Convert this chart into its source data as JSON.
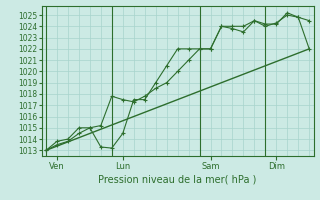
{
  "bg_color": "#cceae4",
  "grid_color": "#a8d4cc",
  "line_color": "#2d6e2d",
  "xlabel": "Pression niveau de la mer( hPa )",
  "ylim": [
    1012.5,
    1025.8
  ],
  "yticks": [
    1013,
    1014,
    1015,
    1016,
    1017,
    1018,
    1019,
    1020,
    1021,
    1022,
    1023,
    1024,
    1025
  ],
  "day_labels": [
    "Ven",
    "Lun",
    "Sam",
    "Dim"
  ],
  "day_positions": [
    0.5,
    3.5,
    7.5,
    10.5
  ],
  "vline_positions": [
    0.0,
    3.0,
    7.0,
    10.0
  ],
  "xmin": -0.2,
  "xmax": 12.2,
  "series1_x": [
    0.0,
    0.5,
    1.0,
    1.5,
    2.0,
    2.5,
    3.0,
    3.5,
    4.0,
    4.5,
    5.0,
    5.5,
    6.0,
    6.5,
    7.0,
    7.5,
    8.0,
    8.5,
    9.0,
    9.5,
    10.0,
    10.5,
    11.0,
    11.5,
    12.0
  ],
  "series1_y": [
    1013.0,
    1013.5,
    1013.8,
    1014.5,
    1015.0,
    1015.2,
    1017.8,
    1017.5,
    1017.3,
    1017.8,
    1018.5,
    1019.0,
    1020.0,
    1021.0,
    1022.0,
    1022.0,
    1024.0,
    1024.0,
    1024.0,
    1024.5,
    1024.2,
    1024.2,
    1025.2,
    1024.8,
    1024.5
  ],
  "series2_x": [
    0.0,
    0.5,
    1.0,
    1.5,
    2.0,
    2.5,
    3.0,
    3.5,
    4.0,
    4.5,
    5.0,
    5.5,
    6.0,
    6.5,
    7.0,
    7.5,
    8.0,
    8.5,
    9.0,
    9.5,
    10.0,
    10.5,
    11.0,
    11.5,
    12.0
  ],
  "series2_y": [
    1013.0,
    1013.8,
    1014.0,
    1015.0,
    1015.0,
    1013.3,
    1013.2,
    1014.5,
    1017.5,
    1017.5,
    1019.0,
    1020.5,
    1022.0,
    1022.0,
    1022.0,
    1022.0,
    1024.0,
    1023.8,
    1023.5,
    1024.5,
    1024.0,
    1024.3,
    1025.0,
    1024.8,
    1022.0
  ],
  "series3_x": [
    0.0,
    12.0
  ],
  "series3_y": [
    1013.0,
    1022.0
  ]
}
